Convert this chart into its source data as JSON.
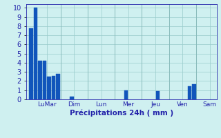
{
  "bars": [
    {
      "x": 1,
      "height": 7.8
    },
    {
      "x": 2,
      "height": 10.0
    },
    {
      "x": 3,
      "height": 4.2
    },
    {
      "x": 4,
      "height": 4.2
    },
    {
      "x": 5,
      "height": 2.5
    },
    {
      "x": 6,
      "height": 2.6
    },
    {
      "x": 7,
      "height": 2.8
    },
    {
      "x": 10,
      "height": 0.3
    },
    {
      "x": 22,
      "height": 1.0
    },
    {
      "x": 29,
      "height": 0.9
    },
    {
      "x": 36,
      "height": 1.4
    },
    {
      "x": 37,
      "height": 1.65
    }
  ],
  "bar_width": 0.85,
  "bar_color": "#1155bb",
  "bar_edge_color": "#1155bb",
  "background_color": "#cff0f0",
  "grid_color": "#99cccc",
  "tick_color": "#2222aa",
  "label_color": "#2222aa",
  "xlabel": "Précipitations 24h ( mm )",
  "ylim": [
    0,
    10.4
  ],
  "yticks": [
    0,
    1,
    2,
    3,
    4,
    5,
    6,
    7,
    8,
    9,
    10
  ],
  "day_tick_positions": [
    4.5,
    10.5,
    16.5,
    22.5,
    28.5,
    34.5,
    40.5
  ],
  "day_labels": [
    "LuMar",
    "Dim",
    "Lun",
    "Mer",
    "Jeu",
    "Ven",
    "Sam"
  ],
  "xlim": [
    0.0,
    42.0
  ],
  "day_separators": [
    7.5,
    13.5,
    19.5,
    25.5,
    31.5,
    37.5
  ]
}
